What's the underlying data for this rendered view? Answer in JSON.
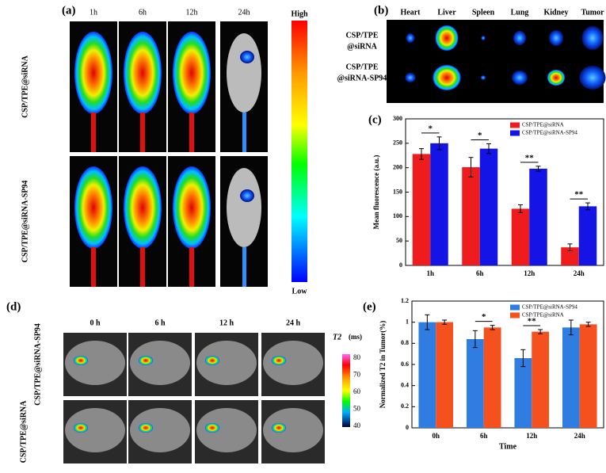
{
  "panels": {
    "a": {
      "label": "(a)",
      "columns": [
        "1h",
        "6h",
        "12h",
        "24h"
      ],
      "rows": [
        "CSP/TPE@siRNA",
        "CSP/TPE@siRNA-SP94"
      ],
      "colorbar": {
        "high": "High",
        "low": "Low"
      }
    },
    "b": {
      "label": "(b)",
      "columns": [
        "Heart",
        "Liver",
        "Spleen",
        "Lung",
        "Kidney",
        "Tumor"
      ],
      "rows": [
        [
          "CSP/TPE",
          "@siRNA"
        ],
        [
          "CSP/TPE",
          "@siRNA-SP94"
        ]
      ]
    },
    "c": {
      "label": "(c)"
    },
    "d": {
      "label": "(d)",
      "columns": [
        "0 h",
        "6 h",
        "12 h",
        "24 h"
      ],
      "rows": [
        "CSP/TPE@siRNA-SP94",
        "CSP/TPE@siRNA"
      ],
      "colorbar": {
        "title": "T2",
        "unit": "(ms)",
        "ticks": [
          80,
          70,
          60,
          50,
          40
        ]
      }
    },
    "e": {
      "label": "(e)"
    }
  },
  "chart_data": [
    {
      "type": "bar",
      "y_label": "Mean fluorescence (a.u.)",
      "categories": [
        "1h",
        "6h",
        "12h",
        "24h"
      ],
      "series": [
        {
          "name": "CSP/TPE@siRNA",
          "color": "#ee1c1c",
          "values": [
            228,
            201,
            116,
            37
          ],
          "errors": [
            11,
            20,
            8,
            7
          ]
        },
        {
          "name": "CSP/TPE@siRNA-SP94",
          "color": "#1414e6",
          "values": [
            250,
            239,
            198,
            121
          ],
          "errors": [
            13,
            10,
            5,
            7
          ]
        }
      ],
      "annotations": [
        "*",
        "*",
        "**",
        "**"
      ],
      "ylim": [
        0,
        300
      ],
      "yticks": [
        0,
        50,
        100,
        150,
        200,
        250,
        300
      ],
      "legend": "upper right"
    },
    {
      "type": "bar",
      "y_label": "Normalized T2 in Tumor(%)",
      "x_label": "Time",
      "categories": [
        "0h",
        "6h",
        "12h",
        "24h"
      ],
      "series": [
        {
          "name": "CSP/TPE@siRNA-SP94",
          "color": "#2f7de1",
          "values": [
            1.0,
            0.84,
            0.66,
            0.95
          ],
          "errors": [
            0.07,
            0.08,
            0.08,
            0.07
          ]
        },
        {
          "name": "CSP/TPE@siRNA",
          "color": "#f4511e",
          "values": [
            1.0,
            0.95,
            0.91,
            0.98
          ],
          "errors": [
            0.02,
            0.02,
            0.02,
            0.02
          ]
        }
      ],
      "annotations": [
        null,
        "*",
        "**",
        null
      ],
      "ylim": [
        0,
        1.2
      ],
      "yticks": [
        0,
        0.2,
        0.4,
        0.6,
        0.8,
        1,
        1.2
      ],
      "legend": "upper right"
    }
  ]
}
